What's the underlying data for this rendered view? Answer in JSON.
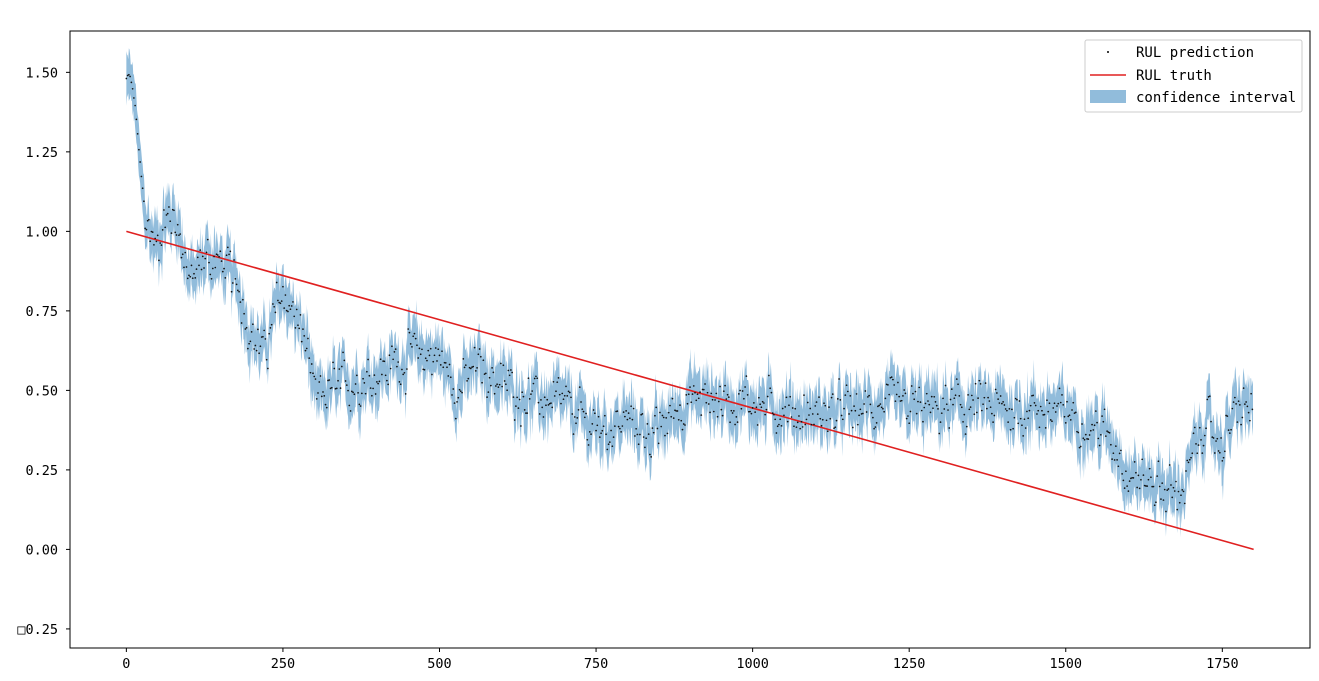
{
  "chart_data": {
    "type": "line",
    "title": "",
    "xlabel": "",
    "ylabel": "",
    "xlim": [
      -90,
      1890
    ],
    "ylim": [
      -0.31,
      1.63
    ],
    "x_ticks": [
      0,
      250,
      500,
      750,
      1000,
      1250,
      1500,
      1750
    ],
    "x_tick_labels": [
      "0",
      "250",
      "500",
      "750",
      "1000",
      "1250",
      "1500",
      "1750"
    ],
    "y_ticks": [
      -0.25,
      0,
      0.25,
      0.5,
      0.75,
      1.0,
      1.25,
      1.5
    ],
    "y_tick_labels": [
      "□0.25",
      "0.00",
      "0.25",
      "0.50",
      "0.75",
      "1.00",
      "1.25",
      "1.50"
    ],
    "grid": false,
    "legend_position": "top-right",
    "n_points": 1800,
    "prediction_trend": {
      "x": [
        0,
        5,
        10,
        15,
        20,
        30,
        40,
        50,
        60,
        80,
        100,
        110,
        130,
        160,
        180,
        200,
        220,
        250,
        270,
        290,
        300,
        320,
        350,
        400,
        450,
        480,
        500,
        530,
        560,
        600,
        650,
        700,
        750,
        800,
        850,
        870,
        900,
        950,
        1000,
        1050,
        1100,
        1150,
        1200,
        1250,
        1300,
        1350,
        1400,
        1450,
        1500,
        1550,
        1580,
        1600,
        1620,
        1650,
        1670,
        1690,
        1720,
        1750,
        1770,
        1790
      ],
      "y": [
        1.48,
        1.49,
        1.45,
        1.38,
        1.25,
        1.05,
        0.98,
        0.96,
        1.04,
        1.05,
        0.86,
        0.85,
        0.93,
        0.87,
        0.82,
        0.68,
        0.62,
        0.82,
        0.72,
        0.64,
        0.45,
        0.49,
        0.52,
        0.55,
        0.61,
        0.62,
        0.6,
        0.5,
        0.58,
        0.52,
        0.47,
        0.45,
        0.38,
        0.4,
        0.36,
        0.42,
        0.48,
        0.47,
        0.46,
        0.44,
        0.42,
        0.43,
        0.45,
        0.44,
        0.44,
        0.45,
        0.44,
        0.44,
        0.43,
        0.38,
        0.34,
        0.24,
        0.22,
        0.21,
        0.17,
        0.2,
        0.4,
        0.33,
        0.43,
        0.45
      ]
    },
    "series": [
      {
        "name": "RUL prediction",
        "color": "#000000",
        "marker": "point"
      },
      {
        "name": "RUL truth",
        "color": "#e02020",
        "x": [
          0,
          1800
        ],
        "y": [
          1.0,
          0.0
        ]
      },
      {
        "name": "confidence interval",
        "color": "#7eb0d5",
        "half_width": 0.06
      }
    ]
  },
  "legend": {
    "items": [
      {
        "label": "RUL prediction"
      },
      {
        "label": "RUL truth"
      },
      {
        "label": "confidence interval"
      }
    ]
  }
}
